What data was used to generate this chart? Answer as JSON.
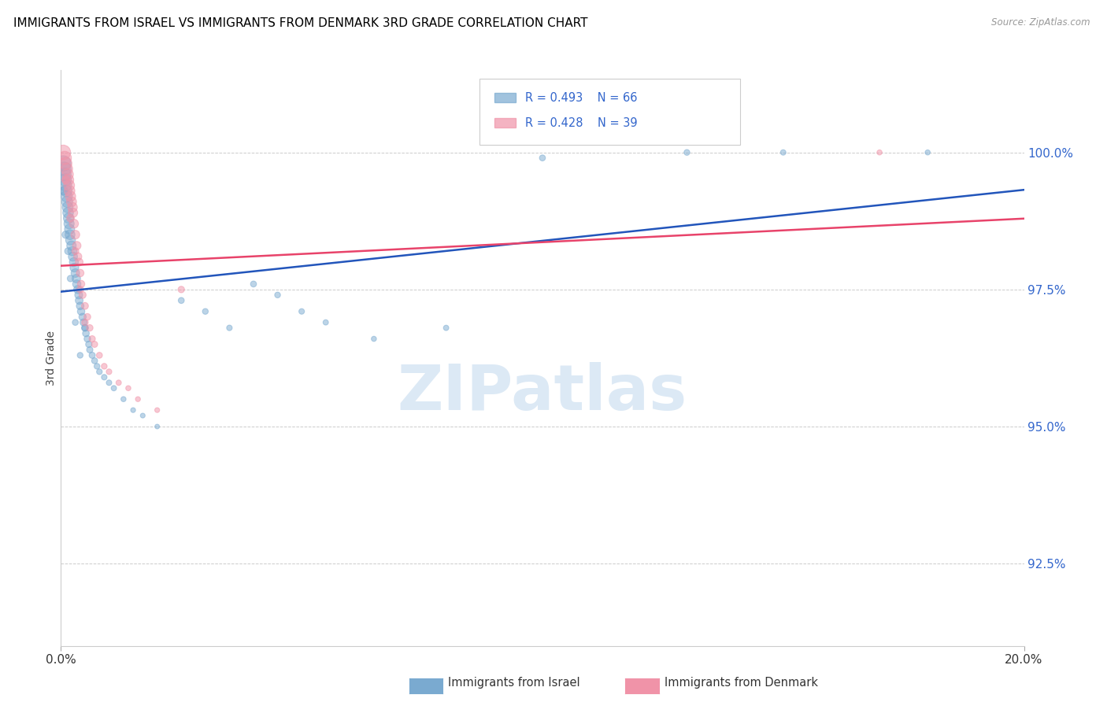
{
  "title": "IMMIGRANTS FROM ISRAEL VS IMMIGRANTS FROM DENMARK 3RD GRADE CORRELATION CHART",
  "source": "Source: ZipAtlas.com",
  "ylabel": "3rd Grade",
  "right_yticks": [
    92.5,
    95.0,
    97.5,
    100.0
  ],
  "right_ytick_labels": [
    "92.5%",
    "95.0%",
    "97.5%",
    "100.0%"
  ],
  "xmin": 0.0,
  "xmax": 20.0,
  "ymin": 91.0,
  "ymax": 101.5,
  "legend_israel": "Immigrants from Israel",
  "legend_denmark": "Immigrants from Denmark",
  "R_israel": 0.493,
  "N_israel": 66,
  "R_denmark": 0.428,
  "N_denmark": 39,
  "color_israel": "#7AAAD0",
  "color_denmark": "#F093A8",
  "color_israel_line": "#2255BB",
  "color_denmark_line": "#E8436A",
  "color_right_axis": "#3366CC",
  "watermark_color": "#DCE9F5",
  "israel_x": [
    0.05,
    0.07,
    0.08,
    0.09,
    0.1,
    0.11,
    0.12,
    0.13,
    0.14,
    0.15,
    0.16,
    0.17,
    0.18,
    0.19,
    0.2,
    0.22,
    0.24,
    0.25,
    0.27,
    0.28,
    0.3,
    0.32,
    0.33,
    0.35,
    0.37,
    0.38,
    0.4,
    0.42,
    0.45,
    0.47,
    0.5,
    0.52,
    0.55,
    0.58,
    0.6,
    0.65,
    0.7,
    0.75,
    0.8,
    0.9,
    1.0,
    1.1,
    1.3,
    1.5,
    1.7,
    2.0,
    2.5,
    3.0,
    3.5,
    4.0,
    4.5,
    5.0,
    5.5,
    6.5,
    8.0,
    10.0,
    13.0,
    0.06,
    0.1,
    0.15,
    0.2,
    0.3,
    0.4,
    0.5,
    15.0,
    18.0
  ],
  "israel_y": [
    99.8,
    99.7,
    99.6,
    99.5,
    99.4,
    99.3,
    99.2,
    99.1,
    99.0,
    98.9,
    98.8,
    98.7,
    98.6,
    98.5,
    98.4,
    98.3,
    98.2,
    98.1,
    98.0,
    97.9,
    97.8,
    97.7,
    97.6,
    97.5,
    97.4,
    97.3,
    97.2,
    97.1,
    97.0,
    96.9,
    96.8,
    96.7,
    96.6,
    96.5,
    96.4,
    96.3,
    96.2,
    96.1,
    96.0,
    95.9,
    95.8,
    95.7,
    95.5,
    95.3,
    95.2,
    95.0,
    97.3,
    97.1,
    96.8,
    97.6,
    97.4,
    97.1,
    96.9,
    96.6,
    96.8,
    99.9,
    100.0,
    99.3,
    98.5,
    98.2,
    97.7,
    96.9,
    96.3,
    96.8,
    100.0,
    100.0
  ],
  "israel_sizes": [
    200,
    160,
    140,
    130,
    120,
    115,
    110,
    105,
    100,
    95,
    90,
    88,
    85,
    82,
    80,
    75,
    72,
    70,
    68,
    65,
    62,
    60,
    58,
    55,
    52,
    50,
    48,
    46,
    44,
    42,
    40,
    38,
    36,
    34,
    33,
    32,
    30,
    28,
    27,
    26,
    25,
    24,
    22,
    20,
    19,
    18,
    30,
    28,
    26,
    30,
    28,
    26,
    24,
    22,
    24,
    30,
    28,
    55,
    45,
    40,
    35,
    30,
    28,
    32,
    25,
    22
  ],
  "denmark_x": [
    0.05,
    0.08,
    0.1,
    0.12,
    0.14,
    0.15,
    0.17,
    0.18,
    0.2,
    0.22,
    0.24,
    0.25,
    0.27,
    0.3,
    0.33,
    0.35,
    0.38,
    0.4,
    0.42,
    0.45,
    0.5,
    0.55,
    0.6,
    0.65,
    0.7,
    0.8,
    0.9,
    1.0,
    1.2,
    1.4,
    1.6,
    2.0,
    2.5,
    0.1,
    0.2,
    0.3,
    0.4,
    17.0,
    0.5
  ],
  "denmark_y": [
    100.0,
    99.9,
    99.8,
    99.7,
    99.6,
    99.5,
    99.4,
    99.3,
    99.2,
    99.1,
    99.0,
    98.9,
    98.7,
    98.5,
    98.3,
    98.1,
    98.0,
    97.8,
    97.6,
    97.4,
    97.2,
    97.0,
    96.8,
    96.6,
    96.5,
    96.3,
    96.1,
    96.0,
    95.8,
    95.7,
    95.5,
    95.3,
    97.5,
    99.5,
    98.8,
    98.2,
    97.5,
    100.0,
    96.9
  ],
  "denmark_sizes": [
    180,
    150,
    130,
    120,
    110,
    105,
    100,
    95,
    90,
    85,
    80,
    75,
    70,
    65,
    60,
    55,
    50,
    48,
    45,
    42,
    40,
    38,
    35,
    33,
    32,
    30,
    28,
    26,
    24,
    22,
    21,
    20,
    35,
    55,
    48,
    42,
    38,
    22,
    36
  ]
}
